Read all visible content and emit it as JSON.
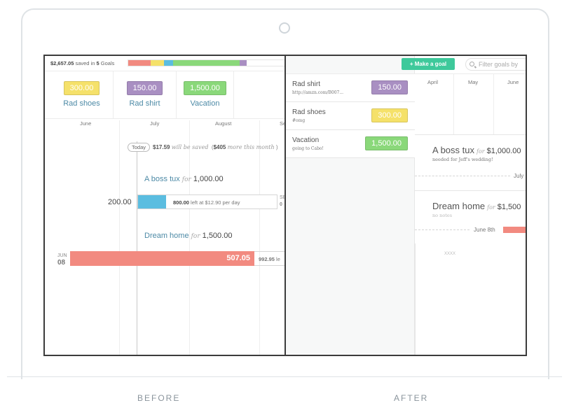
{
  "colors": {
    "yellow": "#f5e16a",
    "purple": "#a98fc2",
    "green": "#8ad87a",
    "blue": "#5bbde0",
    "red": "#f28a80",
    "teal": "#3ec99b"
  },
  "captions": {
    "before": "BEFORE",
    "after": "AFTER"
  },
  "before": {
    "summary": {
      "amount": "$2,657.05",
      "mid": "saved in",
      "count": "5",
      "tail": "Goals"
    },
    "goals": [
      {
        "amount": "300.00",
        "name": "Rad shoes"
      },
      {
        "amount": "150.00",
        "name": "Rad shirt"
      },
      {
        "amount": "1,500.00",
        "name": "Vacation"
      }
    ],
    "months": [
      "June",
      "July",
      "August",
      "Se"
    ],
    "today": {
      "badge": "Today",
      "amount": "$17.59",
      "will": "will be saved",
      "paren_open": "(",
      "month_amt": "$405",
      "more": "more this month",
      "paren_close": ")"
    },
    "goal1": {
      "name": "A boss tux",
      "for": "for",
      "amount": "1,000.00"
    },
    "bar1": {
      "saved": "200.00",
      "left_amt": "800.00",
      "left_txt": "left at $12.90 per day",
      "side_top": "SE",
      "side_bottom": "0"
    },
    "goal2": {
      "name": "Dream home",
      "for": "for",
      "amount": "1,500.00"
    },
    "bar2": {
      "date_month": "JUN",
      "date_day": "08",
      "saved": "507.05",
      "left_amt": "992.95",
      "left_txt": "le"
    }
  },
  "after": {
    "make_goal": "+ Make a goal",
    "filter_placeholder": "Filter goals by",
    "list": [
      {
        "title": "Rad shirt",
        "sub": "http://amzn.com/B007...",
        "amount": "150.00"
      },
      {
        "title": "Rad shoes",
        "sub": "#omg",
        "amount": "300.00"
      },
      {
        "title": "Vacation",
        "sub": "going to Cabo!",
        "amount": "1,500.00"
      }
    ],
    "months": [
      "April",
      "May",
      "June"
    ],
    "card1": {
      "name": "A boss tux",
      "for": "for",
      "amount": "$1,000.00",
      "sub": "needed for Jeff's wedding!",
      "marker": "July"
    },
    "card2": {
      "name": "Dream home",
      "for": "for",
      "amount": "$1,500",
      "sub": "no notes",
      "marker": "June 8th"
    },
    "footer": "XXXX"
  }
}
